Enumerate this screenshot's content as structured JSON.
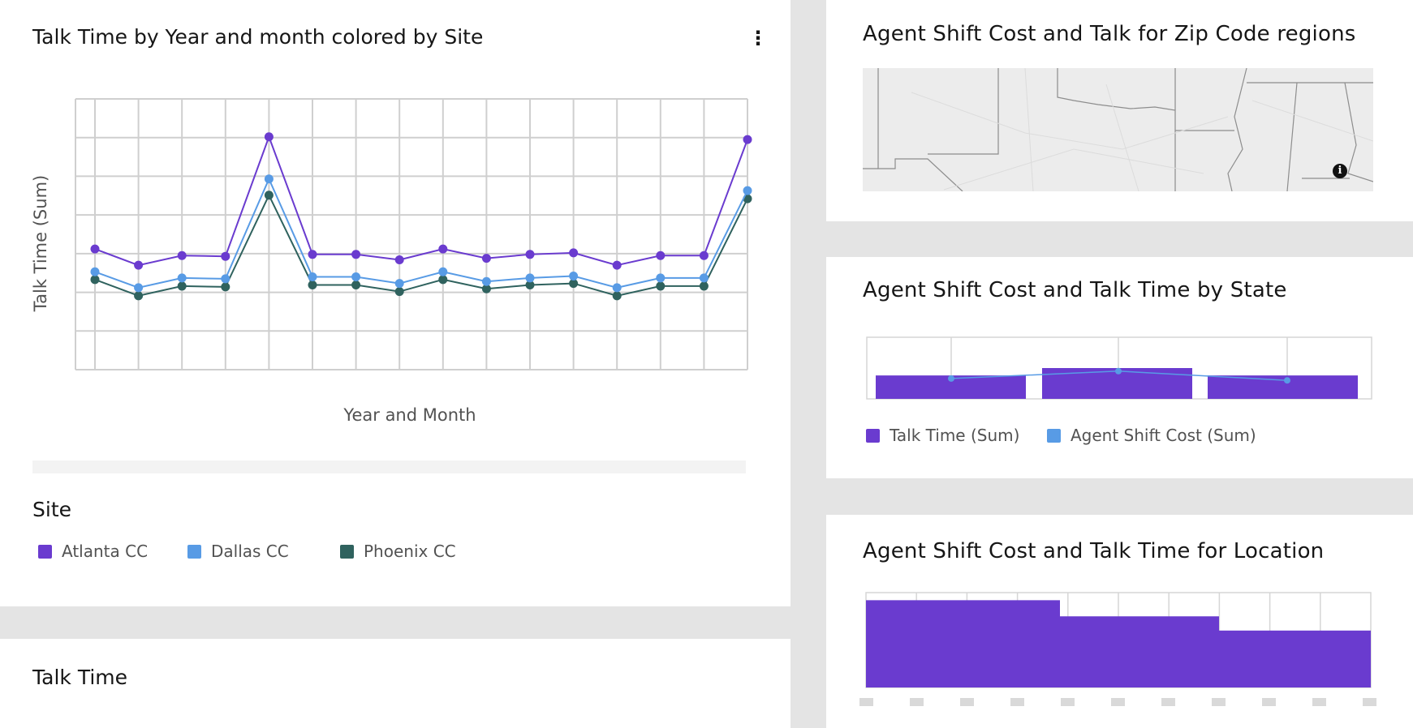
{
  "left_card": {
    "title": "Talk Time by Year and month colored by Site",
    "menu_icon": "overflow-menu-vertical-icon",
    "legend_title": "Site"
  },
  "bottom_card": {
    "title": "Talk Time"
  },
  "zip_card": {
    "title": "Agent Shift Cost and Talk for Zip Code regions",
    "info_icon": "information-icon"
  },
  "state_card": {
    "title": "Agent Shift Cost and Talk Time by State"
  },
  "location_card": {
    "title": "Agent Shift Cost and Talk Time for Location"
  },
  "colors": {
    "atlanta": "#6a3bcf",
    "dallas": "#589be5",
    "phoenix": "#2f625e",
    "talk": "#6a3bcf",
    "cost": "#589be5"
  },
  "chart_data": [
    {
      "type": "line",
      "title": "Talk Time by Year and month colored by Site",
      "xlabel": "Year and Month",
      "ylabel": "Talk Time (Sum)",
      "ylim": [
        0,
        7
      ],
      "grid": true,
      "legend_title": "Site",
      "legend_position": "bottom-left",
      "x_count": 16,
      "series": [
        {
          "name": "Atlanta CC",
          "values": [
            3.12,
            2.7,
            2.95,
            2.93,
            6.02,
            2.98,
            2.98,
            2.84,
            3.12,
            2.88,
            2.98,
            3.02,
            2.7,
            2.95,
            2.95,
            5.95
          ]
        },
        {
          "name": "Dallas CC",
          "values": [
            2.53,
            2.12,
            2.37,
            2.35,
            4.93,
            2.4,
            2.4,
            2.23,
            2.53,
            2.28,
            2.37,
            2.42,
            2.12,
            2.37,
            2.37,
            4.63
          ]
        },
        {
          "name": "Phoenix CC",
          "values": [
            2.33,
            1.91,
            2.16,
            2.14,
            4.51,
            2.19,
            2.19,
            2.02,
            2.33,
            2.09,
            2.19,
            2.23,
            1.91,
            2.16,
            2.16,
            4.42
          ]
        }
      ]
    },
    {
      "type": "bar",
      "title": "Agent Shift Cost and Talk Time by State",
      "categories": 3,
      "series": [
        {
          "name": "Talk Time (Sum)",
          "values": [
            0.38,
            0.5,
            0.38
          ]
        },
        {
          "name": "Agent Shift Cost (Sum)",
          "values": [
            0.33,
            0.45,
            0.3
          ]
        }
      ],
      "ylim": [
        0,
        1
      ],
      "legend_position": "bottom"
    },
    {
      "type": "bar",
      "title": "Agent Shift Cost and Talk Time for Location",
      "series": [
        {
          "name": "Talk Time (Sum)",
          "values": [
            0.92,
            0.75,
            0.6
          ]
        }
      ],
      "ylim": [
        0,
        1
      ],
      "tick_count": 11
    }
  ]
}
